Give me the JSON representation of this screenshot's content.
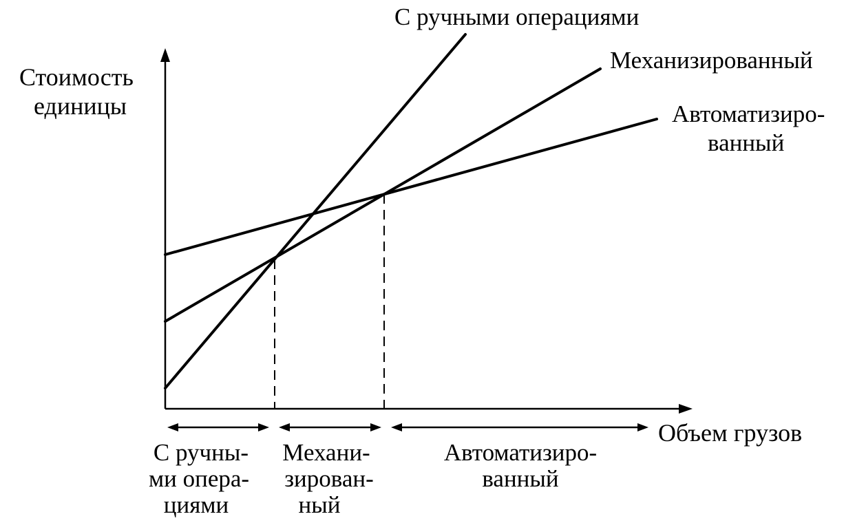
{
  "axes": {
    "y_label_lines": [
      "Стоимость",
      "единицы"
    ],
    "x_label": "Объем грузов"
  },
  "lines": {
    "manual_label": "С ручными операциями",
    "mechanized_label": "Механизированный",
    "automated_label_lines": [
      "Автоматизиро-",
      "ванный"
    ]
  },
  "zones": {
    "manual_lines": [
      "С ручны-",
      "ми опера-",
      "циями"
    ],
    "mechanized_lines": [
      "Механи-",
      "зирован-",
      "ный"
    ],
    "automated_lines": [
      "Автоматизиро-",
      "ванный"
    ]
  },
  "colors": {
    "ink": "#000000",
    "background": "#ffffff"
  }
}
